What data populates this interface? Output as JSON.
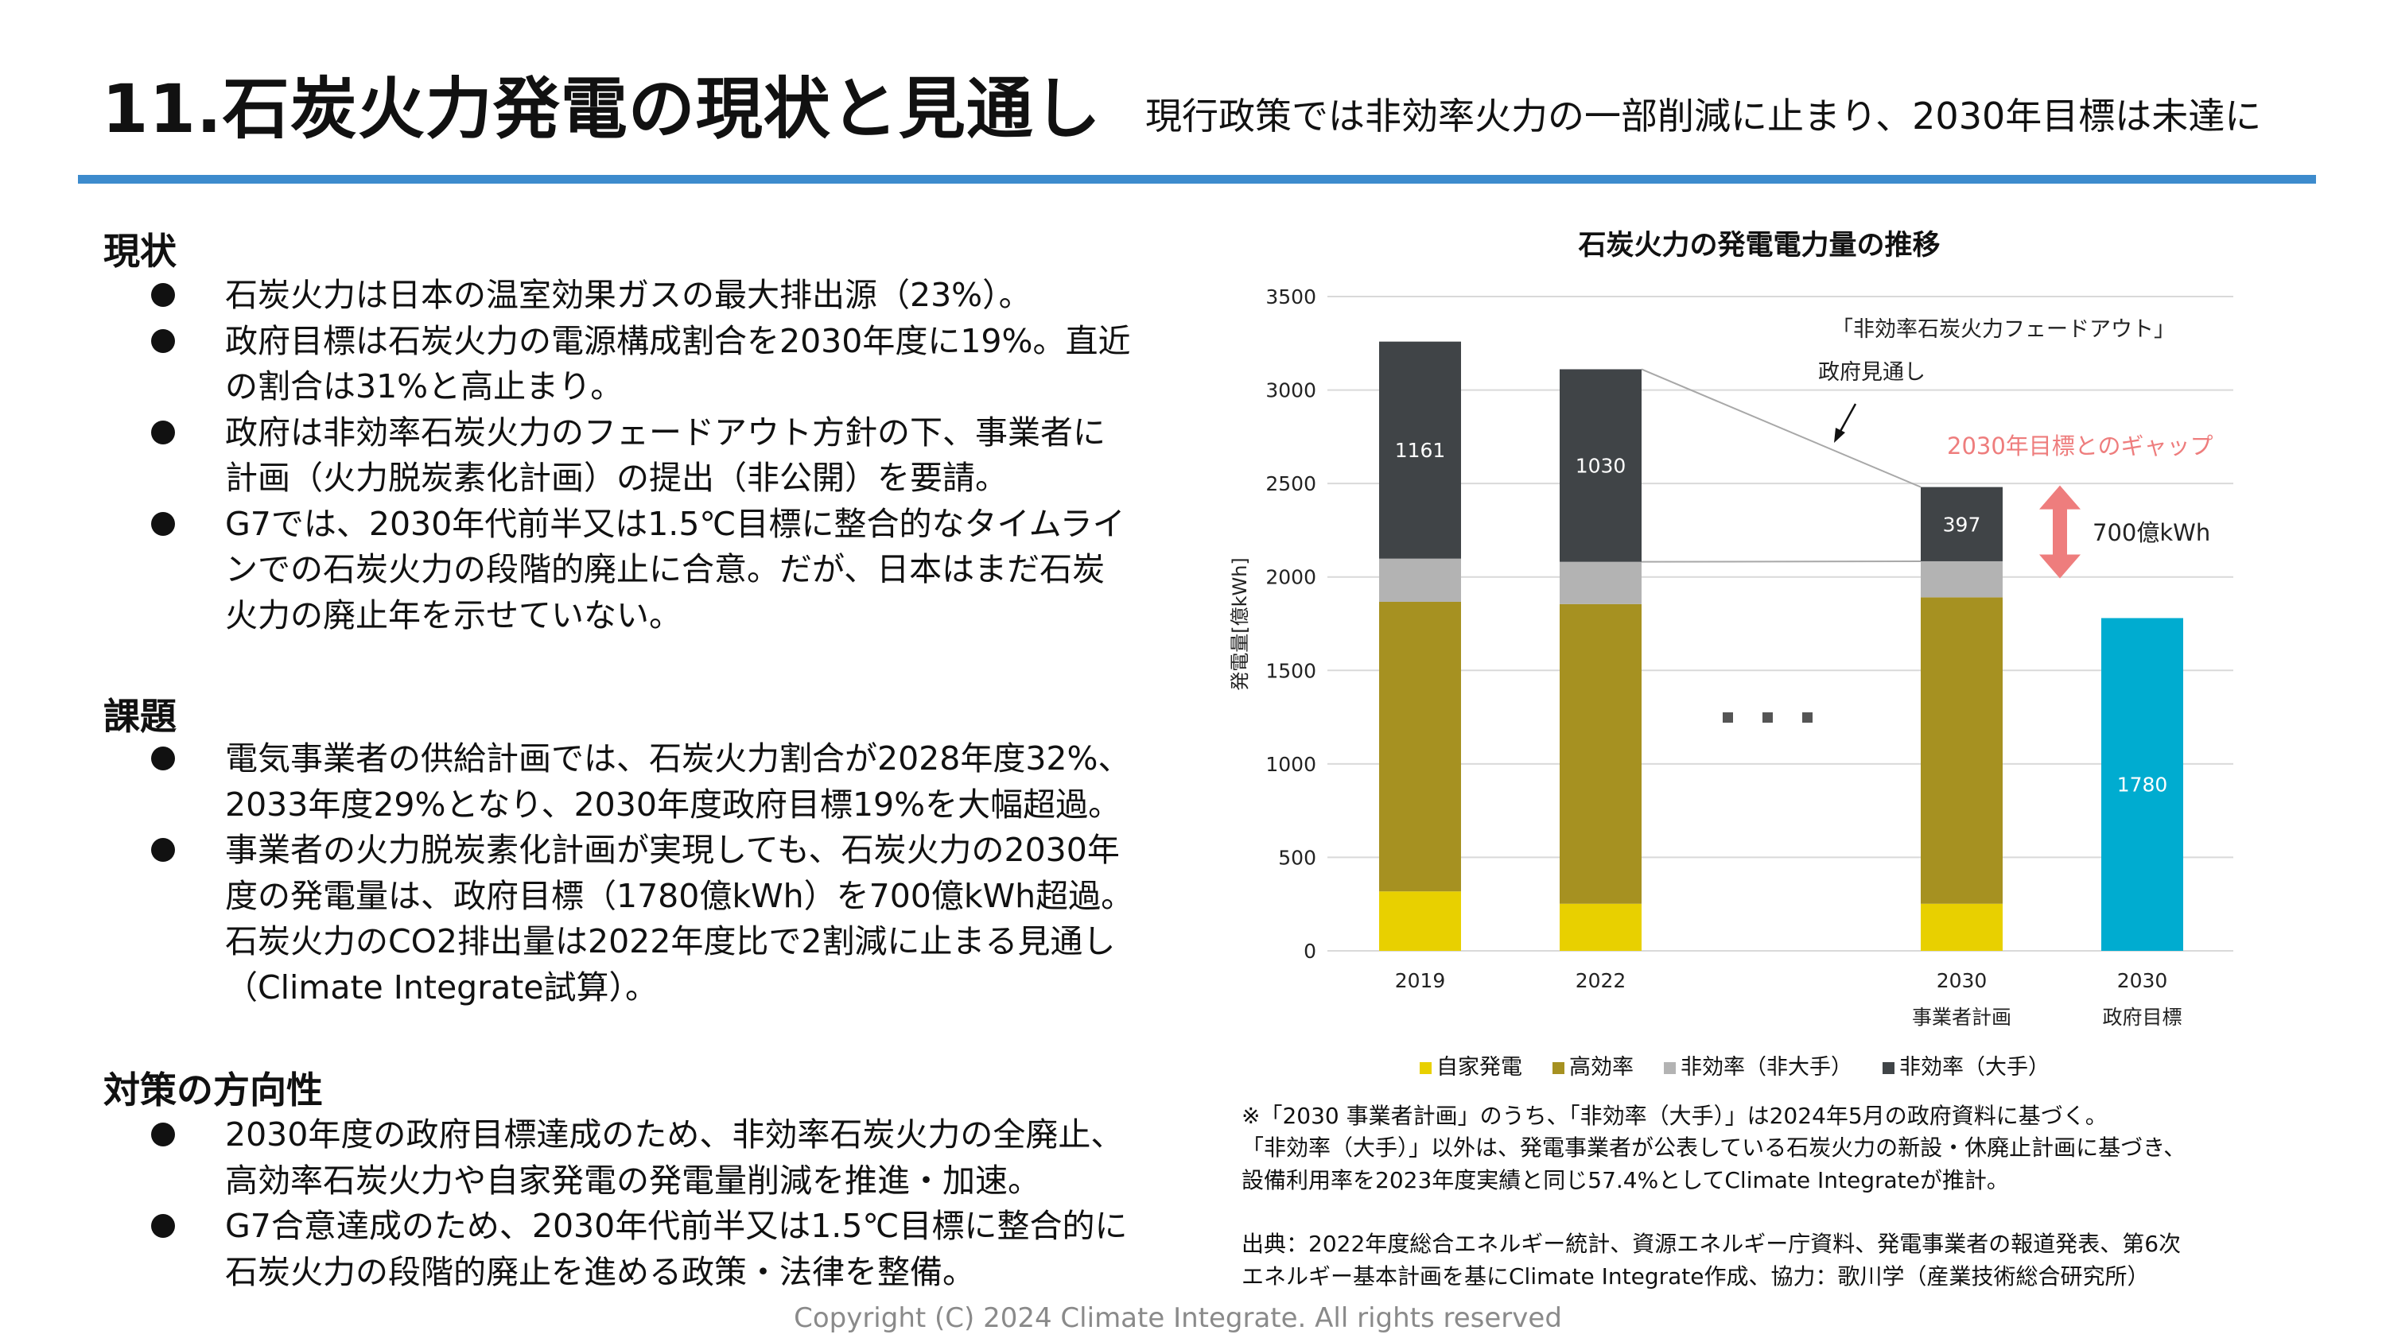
{
  "header": {
    "title": "11.石炭火力発電の現状と見通し",
    "subtitle": "現行政策では非効率火力の一部削減に止まり、2030年目標は未達に",
    "rule_color": "#3d8bcd"
  },
  "sections": [
    {
      "heading": "現状",
      "bullets": [
        [
          "石炭火力は日本の温室効果ガスの最大排出源（23%）。"
        ],
        [
          "政府目標は石炭火力の電源構成割合を2030年度に19%。直近",
          "の割合は31%と高止まり。"
        ],
        [
          "政府は非効率石炭火力のフェードアウト方針の下、事業者に",
          "計画（火力脱炭素化計画）の提出（非公開）を要請。"
        ],
        [
          "G7では、2030年代前半又は1.5℃目標に整合的なタイムライ",
          "ンでの石炭火力の段階的廃止に合意。だが、日本はまだ石炭",
          "火力の廃止年を示せていない。"
        ]
      ]
    },
    {
      "heading": "課題",
      "bullets": [
        [
          "電気事業者の供給計画では、石炭火力割合が2028年度32%、",
          "2033年度29%となり、2030年度政府目標19%を大幅超過。"
        ],
        [
          "事業者の火力脱炭素化計画が実現しても、石炭火力の2030年",
          "度の発電量は、政府目標（1780億kWh）を700億kWh超過。",
          "石炭火力のCO2排出量は2022年度比で2割減に止まる見通し",
          "（Climate Integrate試算）。"
        ]
      ]
    },
    {
      "heading": "対策の方向性",
      "bullets": [
        [
          "2030年度の政府目標達成のため、非効率石炭火力の全廃止、",
          "高効率石炭火力や自家発電の発電量削減を推進・加速。"
        ],
        [
          "G7合意達成のため、2030年代前半又は1.5℃目標に整合的に",
          "石炭火力の段階的廃止を進める政策・法律を整備。"
        ]
      ]
    }
  ],
  "chart_data": {
    "type": "bar",
    "stacked": true,
    "title": "石炭火力の発電電力量の推移",
    "ylabel": "発電量[億kWh]",
    "ylim": [
      0,
      3500
    ],
    "yticks": [
      0,
      500,
      1000,
      1500,
      2000,
      2500,
      3000,
      3500
    ],
    "grid": true,
    "legend_position": "bottom",
    "categories": [
      {
        "line1": "2019",
        "line2": ""
      },
      {
        "line1": "2022",
        "line2": ""
      },
      {
        "line1": "2030",
        "line2": "事業者計画"
      },
      {
        "line1": "2030",
        "line2": "政府目標"
      }
    ],
    "series": [
      {
        "name": "自家発電",
        "color": "#e8d000",
        "values": [
          318,
          252,
          252,
          null
        ]
      },
      {
        "name": "高効率",
        "color": "#a69121",
        "values": [
          1549,
          1603,
          1639,
          null
        ]
      },
      {
        "name": "非効率（非大手）",
        "color": "#b3b3b3",
        "values": [
          231,
          226,
          193,
          null
        ]
      },
      {
        "name": "非効率（大手）",
        "color": "#404447",
        "values": [
          1161,
          1030,
          397,
          null
        ]
      },
      {
        "name": "",
        "color": "#00acd0",
        "values": [
          null,
          null,
          null,
          1780
        ]
      }
    ],
    "data_labels": [
      "1161",
      "1030",
      "397",
      "1780"
    ],
    "ellipsis": "・・・",
    "annotations": {
      "phaseout_line1": "「非効率石炭火力フェードアウト」",
      "phaseout_line2": "政府見通し",
      "gap_label": "2030年目標とのギャップ",
      "gap_value": "700億kWh",
      "gap_color": "#ee7d7d"
    }
  },
  "notes": [
    "※「2030 事業者計画」のうち、「非効率（大手）」は2024年5月の政府資料に基づく。",
    "「非効率（大手）」以外は、発電事業者が公表している石炭火力の新設・休廃止計画に基づき、",
    "設備利用率を2023年度実績と同じ57.4%としてClimate Integrateが推計。"
  ],
  "sources": [
    "出典：2022年度総合エネルギー統計、資源エネルギー庁資料、発電事業者の報道発表、第6次",
    "エネルギー基本計画を基にClimate Integrate作成、協力：歌川学（産業技術総合研究所）"
  ],
  "footer": {
    "copyright": "Copyright (C) 2024 Climate Integrate. All rights reserved"
  }
}
